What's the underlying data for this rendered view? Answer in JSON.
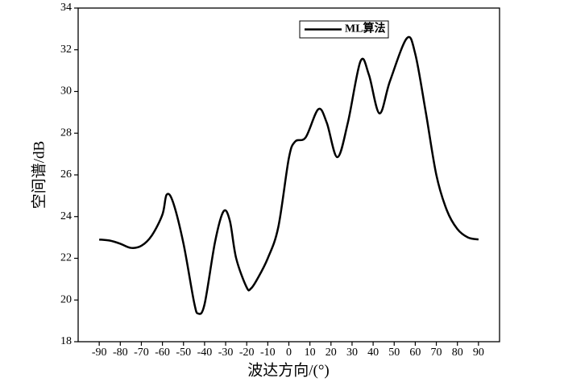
{
  "chart_data": {
    "type": "line",
    "xlabel": "波达方向/(°)",
    "ylabel": "空间谱/dB",
    "x": [
      -90,
      -85,
      -80,
      -75,
      -70,
      -65,
      -60,
      -58,
      -55,
      -50,
      -45,
      -43,
      -40,
      -35,
      -31,
      -28,
      -25,
      -20,
      -18,
      -15,
      -10,
      -5,
      0,
      3,
      8,
      14,
      18,
      23,
      28,
      34,
      38,
      43,
      48,
      56,
      60,
      65,
      70,
      75,
      80,
      85,
      90
    ],
    "series": [
      {
        "name": "ML算法",
        "color": "#000000",
        "values": [
          22.9,
          22.85,
          22.7,
          22.5,
          22.6,
          23.1,
          24.1,
          25.05,
          24.7,
          22.7,
          19.9,
          19.35,
          19.8,
          22.8,
          24.25,
          23.8,
          22.0,
          20.6,
          20.55,
          21.0,
          22.0,
          23.5,
          26.8,
          27.6,
          27.8,
          29.15,
          28.5,
          26.85,
          28.5,
          31.45,
          30.8,
          28.95,
          30.5,
          32.55,
          31.8,
          29.0,
          26.0,
          24.3,
          23.4,
          23.0,
          22.9
        ]
      }
    ],
    "xlim": [
      -100,
      100
    ],
    "xticks": [
      -90,
      -80,
      -70,
      -60,
      -50,
      -40,
      -30,
      -20,
      -10,
      0,
      10,
      20,
      30,
      40,
      50,
      60,
      70,
      80,
      90
    ],
    "ylim": [
      18,
      34
    ],
    "yticks": [
      18,
      20,
      22,
      24,
      26,
      28,
      30,
      32,
      34
    ],
    "legend": "top"
  }
}
